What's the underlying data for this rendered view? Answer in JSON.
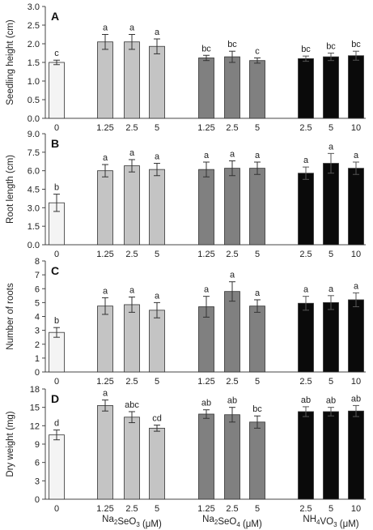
{
  "chart_data": [
    {
      "type": "bar",
      "panel": "A",
      "ylabel": "Seedling height (cm)",
      "ylim": [
        0,
        3.0
      ],
      "yticks": [
        "0.0",
        "0.5",
        "1.0",
        "1.5",
        "2.0",
        "2.5",
        "3.0"
      ],
      "categories": [
        "0",
        "1.25",
        "2.5",
        "5",
        "1.25",
        "2.5",
        "5",
        "2.5",
        "5",
        "10"
      ],
      "values": [
        1.5,
        2.05,
        2.05,
        1.93,
        1.62,
        1.65,
        1.55,
        1.6,
        1.65,
        1.68
      ],
      "errors": [
        0.06,
        0.2,
        0.2,
        0.2,
        0.07,
        0.15,
        0.07,
        0.07,
        0.1,
        0.12
      ],
      "letters": [
        "c",
        "a",
        "a",
        "a",
        "bc",
        "bc",
        "c",
        "bc",
        "bc",
        "bc"
      ]
    },
    {
      "type": "bar",
      "panel": "B",
      "ylabel": "Root length (cm)",
      "ylim": [
        0,
        9.0
      ],
      "yticks": [
        "0.0",
        "1.5",
        "3.0",
        "4.5",
        "6.0",
        "7.5",
        "9.0"
      ],
      "categories": [
        "0",
        "1.25",
        "2.5",
        "5",
        "1.25",
        "2.5",
        "5",
        "2.5",
        "5",
        "10"
      ],
      "values": [
        3.4,
        6.0,
        6.4,
        6.1,
        6.1,
        6.2,
        6.2,
        5.8,
        6.6,
        6.2
      ],
      "errors": [
        0.7,
        0.5,
        0.5,
        0.5,
        0.6,
        0.6,
        0.5,
        0.5,
        0.8,
        0.5
      ],
      "letters": [
        "b",
        "a",
        "a",
        "a",
        "a",
        "a",
        "a",
        "a",
        "a",
        "a"
      ]
    },
    {
      "type": "bar",
      "panel": "C",
      "ylabel": "Number of roots",
      "ylim": [
        0,
        8
      ],
      "yticks": [
        "0",
        "1",
        "2",
        "3",
        "4",
        "5",
        "6",
        "7",
        "8"
      ],
      "categories": [
        "0",
        "1.25",
        "2.5",
        "5",
        "1.25",
        "2.5",
        "5",
        "2.5",
        "5",
        "10"
      ],
      "values": [
        2.85,
        4.75,
        4.85,
        4.45,
        4.7,
        5.8,
        4.75,
        4.95,
        5.0,
        5.2
      ],
      "errors": [
        0.35,
        0.6,
        0.55,
        0.55,
        0.75,
        0.7,
        0.45,
        0.5,
        0.5,
        0.5
      ],
      "letters": [
        "b",
        "a",
        "a",
        "a",
        "a",
        "a",
        "a",
        "a",
        "a",
        "a"
      ]
    },
    {
      "type": "bar",
      "panel": "D",
      "ylabel": "Dry weight (mg)",
      "ylim": [
        0,
        18
      ],
      "yticks": [
        "0",
        "3",
        "6",
        "9",
        "12",
        "15",
        "18"
      ],
      "categories": [
        "0",
        "1.25",
        "2.5",
        "5",
        "1.25",
        "2.5",
        "5",
        "2.5",
        "5",
        "10"
      ],
      "values": [
        10.5,
        15.3,
        13.4,
        11.6,
        13.9,
        13.8,
        12.6,
        14.3,
        14.3,
        14.4
      ],
      "errors": [
        0.8,
        0.9,
        0.9,
        0.5,
        0.7,
        1.2,
        1.0,
        0.8,
        0.7,
        0.9
      ],
      "letters": [
        "d",
        "a",
        "abc",
        "cd",
        "ab",
        "ab",
        "bc",
        "ab",
        "ab",
        "ab"
      ]
    }
  ],
  "groups": [
    {
      "pre": "Na",
      "sub1": "2",
      "mid": "SeO",
      "sub2": "3",
      "post": " (μM)"
    },
    {
      "pre": "Na",
      "sub1": "2",
      "mid": "SeO",
      "sub2": "4",
      "post": " (μM)"
    },
    {
      "pre": "NH",
      "sub1": "4",
      "mid": "VO",
      "sub2": "3",
      "post": " (μM)"
    }
  ],
  "colors": {
    "control": "#f4f4f4",
    "selenite": "#c4c4c4",
    "selenate": "#808080",
    "vanadate": "#0a0a0a",
    "stroke": "#333333"
  }
}
